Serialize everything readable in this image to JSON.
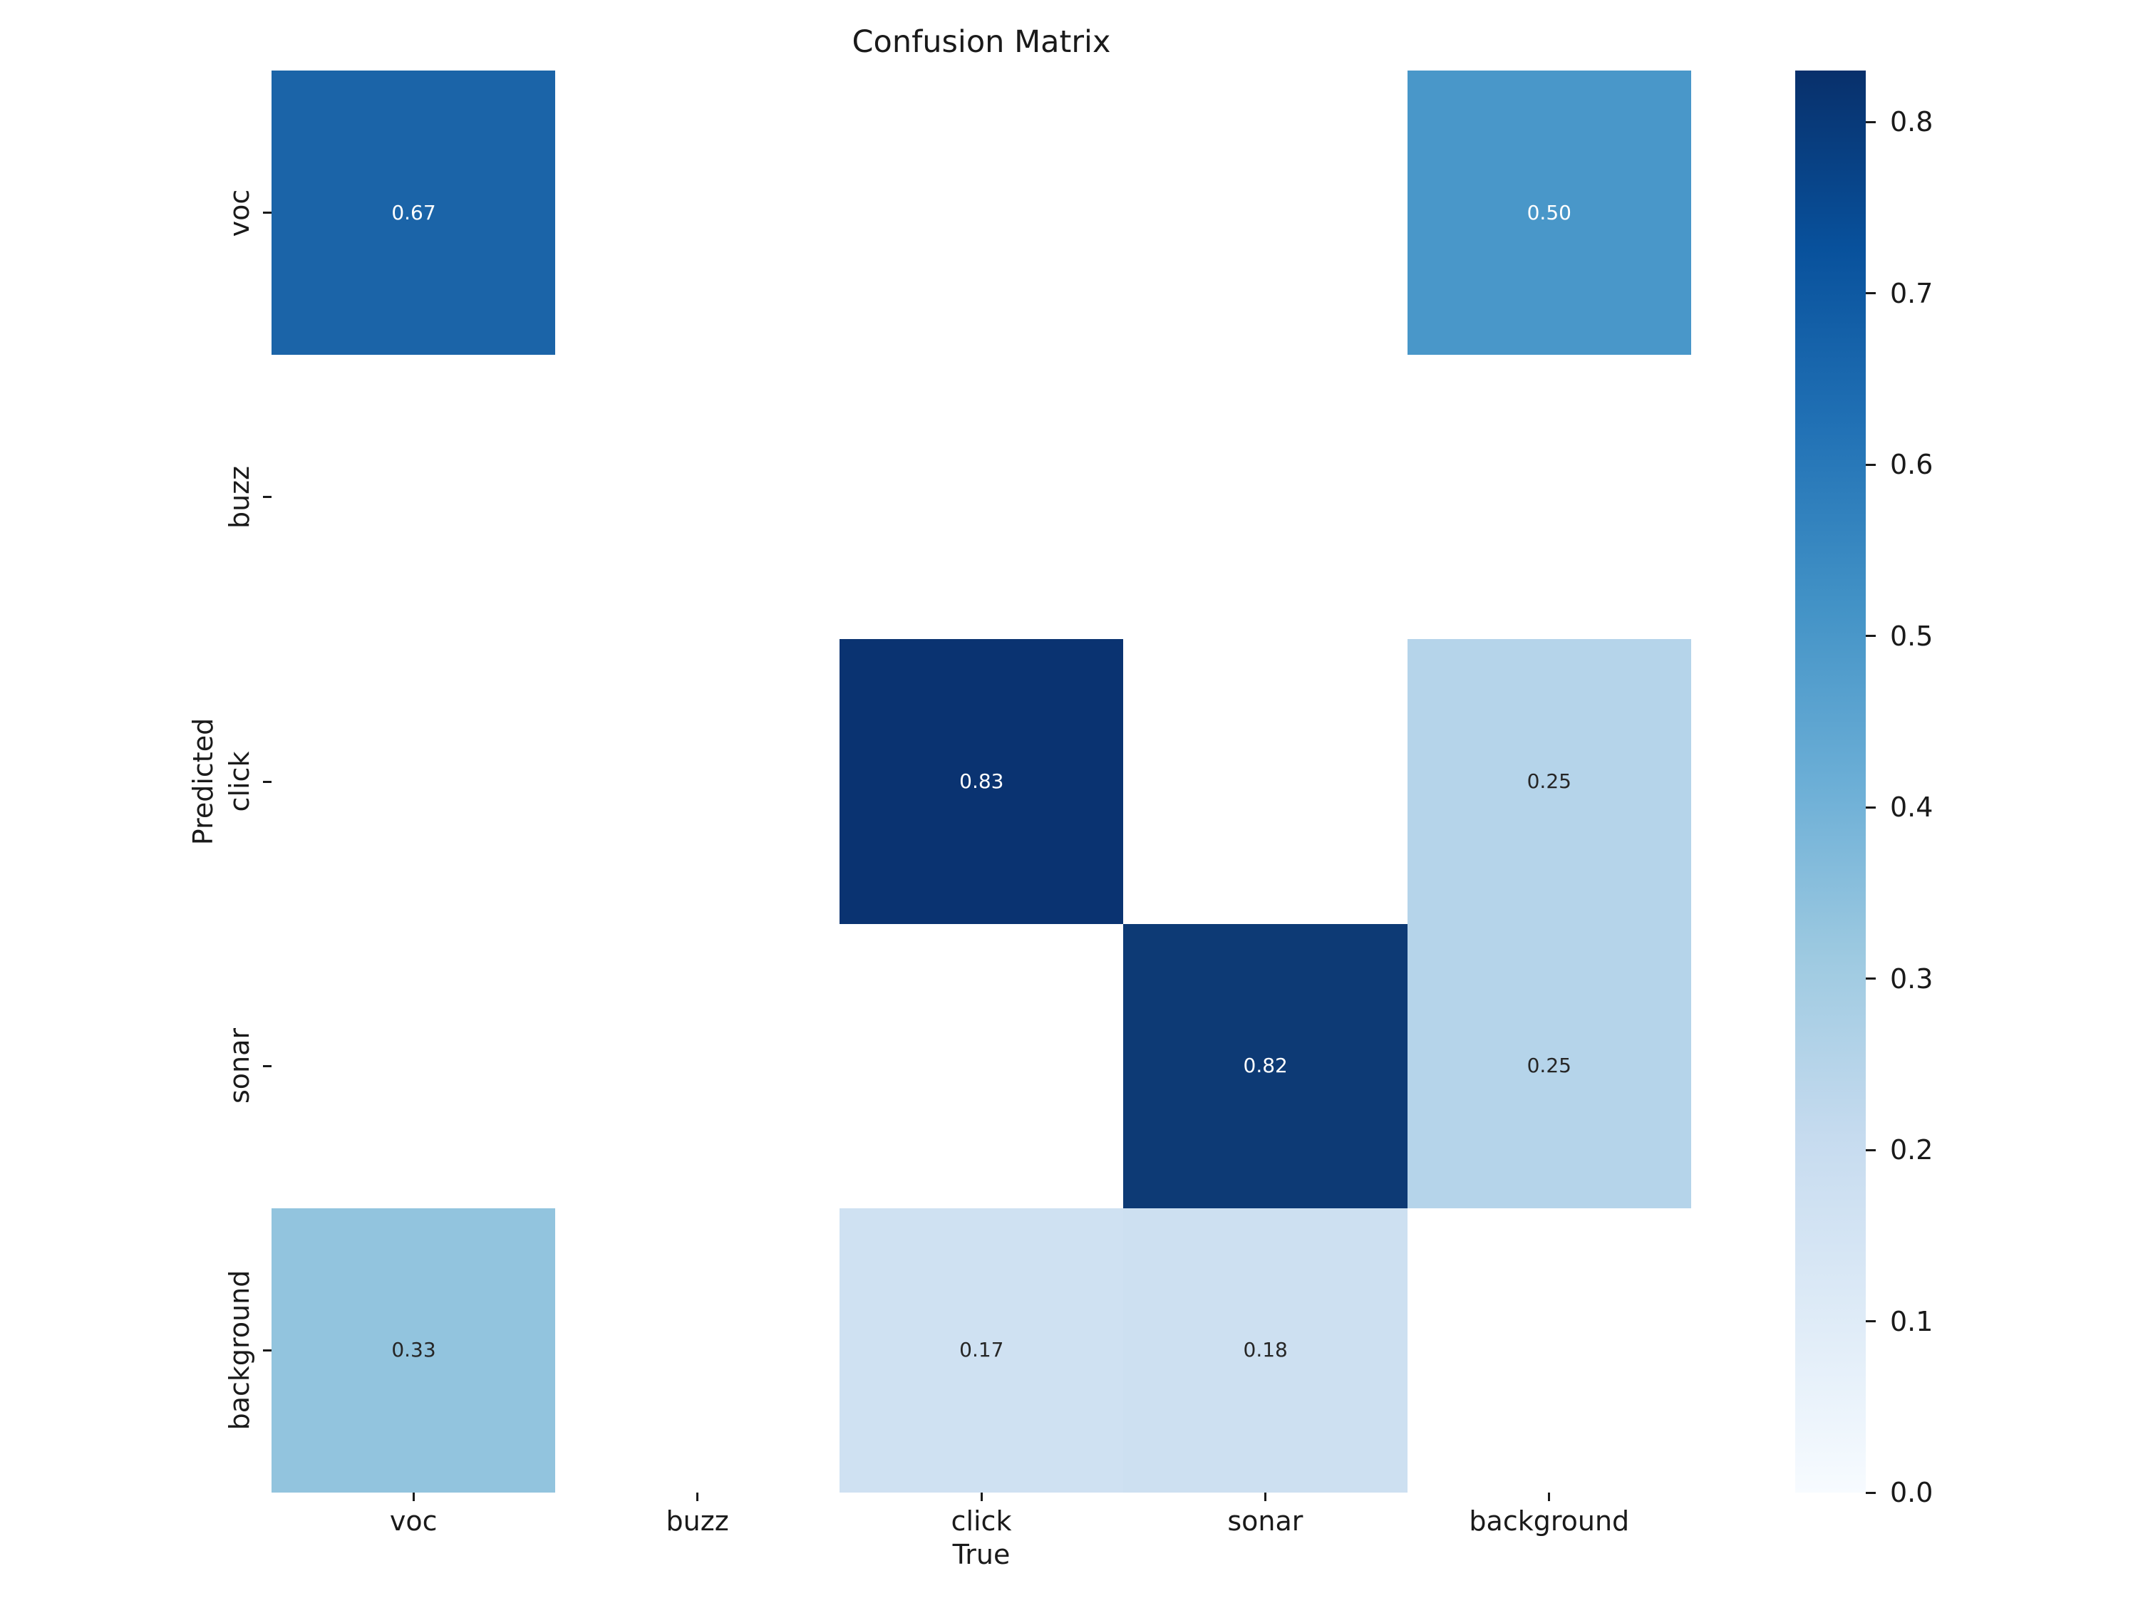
{
  "chart_data": {
    "type": "heatmap",
    "title": "Confusion Matrix",
    "xlabel": "True",
    "ylabel": "Predicted",
    "x_categories": [
      "voc",
      "buzz",
      "click",
      "sonar",
      "background"
    ],
    "y_categories": [
      "voc",
      "buzz",
      "click",
      "sonar",
      "background"
    ],
    "matrix": [
      [
        0.67,
        null,
        null,
        null,
        0.5
      ],
      [
        null,
        null,
        null,
        null,
        null
      ],
      [
        null,
        null,
        0.83,
        null,
        0.25
      ],
      [
        null,
        null,
        null,
        0.82,
        0.25
      ],
      [
        0.33,
        null,
        0.17,
        0.18,
        null
      ]
    ],
    "cell_labels": [
      [
        "0.67",
        null,
        null,
        null,
        "0.50"
      ],
      [
        null,
        null,
        null,
        null,
        null
      ],
      [
        null,
        null,
        "0.83",
        null,
        "0.25"
      ],
      [
        null,
        null,
        null,
        "0.82",
        "0.25"
      ],
      [
        "0.33",
        null,
        "0.17",
        "0.18",
        null
      ]
    ],
    "cell_colors": [
      [
        "#1b64a8",
        "#ffffff",
        "#ffffff",
        "#ffffff",
        "#4997c9"
      ],
      [
        "#ffffff",
        "#ffffff",
        "#ffffff",
        "#ffffff",
        "#ffffff"
      ],
      [
        "#ffffff",
        "#ffffff",
        "#0a3371",
        "#ffffff",
        "#b5d4ea"
      ],
      [
        "#ffffff",
        "#ffffff",
        "#ffffff",
        "#0d3a75",
        "#b5d4ea"
      ],
      [
        "#92c4de",
        "#ffffff",
        "#cfe1f2",
        "#cde0f1",
        "#ffffff"
      ]
    ],
    "annot_colors": [
      [
        "#ffffff",
        null,
        null,
        null,
        "#ffffff"
      ],
      [
        null,
        null,
        null,
        null,
        null
      ],
      [
        null,
        null,
        "#ffffff",
        null,
        "#262626"
      ],
      [
        null,
        null,
        null,
        "#ffffff",
        "#262626"
      ],
      [
        "#262626",
        null,
        "#262626",
        "#262626",
        null
      ]
    ],
    "empty_cell_color": "#ffffff",
    "grid": false,
    "legend": false,
    "colorbar": {
      "colormap": "Blues",
      "vmin": 0.0,
      "vmax": 0.83,
      "tick_values": [
        0.0,
        0.1,
        0.2,
        0.3,
        0.4,
        0.5,
        0.6,
        0.7,
        0.8
      ],
      "tick_labels": [
        "0.0",
        "0.1",
        "0.2",
        "0.3",
        "0.4",
        "0.5",
        "0.6",
        "0.7",
        "0.8"
      ],
      "gradient_stops": [
        "#f7fbff",
        "#deebf7",
        "#c6dbef",
        "#9ecae1",
        "#6baed6",
        "#4292c6",
        "#2171b5",
        "#08519c",
        "#08306b"
      ]
    },
    "text_color": "#1a1a1a"
  }
}
